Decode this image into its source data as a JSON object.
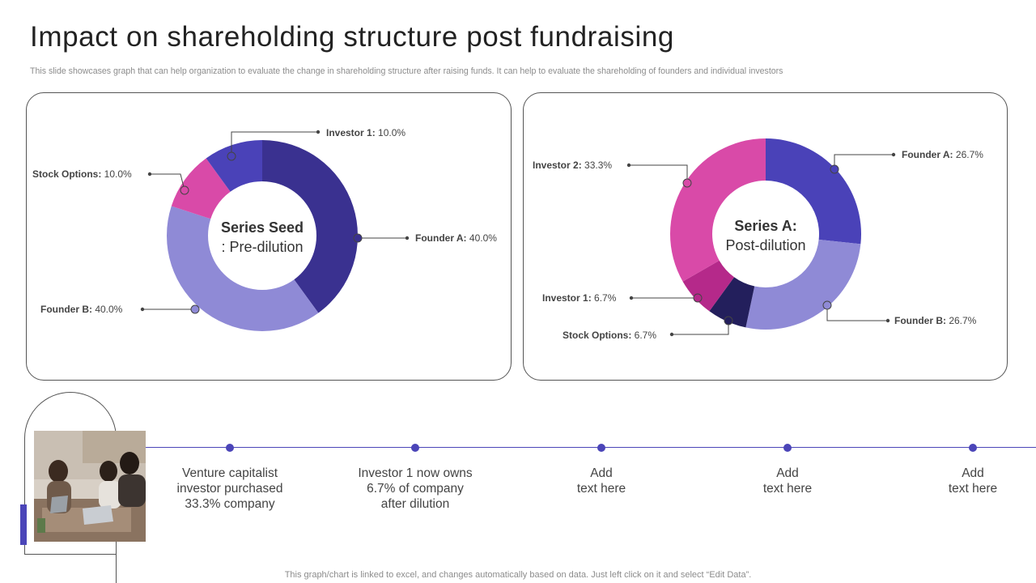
{
  "header": {
    "title": "Impact on shareholding structure post fundraising",
    "subtitle": "This slide showcases graph that can help organization to evaluate the change in shareholding structure after raising funds. It can help to  evaluate the shareholding of founders and individual investors"
  },
  "colors": {
    "dark_purple": "#3a3190",
    "mid_blue": "#4a42b8",
    "lavender": "#8f8ad6",
    "pink": "#d94aa8",
    "magenta": "#b5298a",
    "navy": "#231f5c",
    "accent": "#4b45b8"
  },
  "chart_data": [
    {
      "type": "pie",
      "variant": "donut",
      "center_label_line1": "Series Seed",
      "center_label_line2": ": Pre-dilution",
      "slices": [
        {
          "name": "Founder A",
          "value": 40.0,
          "display": "40.0%",
          "color": "#3a3190"
        },
        {
          "name": "Founder B",
          "value": 40.0,
          "display": "40.0%",
          "color": "#8f8ad6"
        },
        {
          "name": "Stock Options",
          "value": 10.0,
          "display": "10.0%",
          "color": "#d94aa8"
        },
        {
          "name": "Investor 1",
          "value": 10.0,
          "display": "10.0%",
          "color": "#4a42b8"
        }
      ]
    },
    {
      "type": "pie",
      "variant": "donut",
      "center_label_line1": "Series A:",
      "center_label_line2": "Post-dilution",
      "slices": [
        {
          "name": "Founder A",
          "value": 26.7,
          "display": "26.7%",
          "color": "#4a42b8"
        },
        {
          "name": "Founder B",
          "value": 26.7,
          "display": "26.7%",
          "color": "#8f8ad6"
        },
        {
          "name": "Stock Options",
          "value": 6.7,
          "display": "6.7%",
          "color": "#231f5c"
        },
        {
          "name": "Investor 1",
          "value": 6.7,
          "display": "6.7%",
          "color": "#b5298a"
        },
        {
          "name": "Investor 2",
          "value": 33.3,
          "display": "33.3%",
          "color": "#d94aa8"
        }
      ]
    }
  ],
  "timeline": {
    "items": [
      "Venture capitalist\ninvestor purchased\n33.3% company",
      "Investor  1 now owns\n6.7% of company\nafter dilution",
      "Add\ntext here",
      "Add\ntext here",
      "Add\ntext here"
    ]
  },
  "footer": {
    "note": "This graph/chart is linked to excel,  and changes automatically based on data. Just left click on it and select “Edit Data”."
  }
}
